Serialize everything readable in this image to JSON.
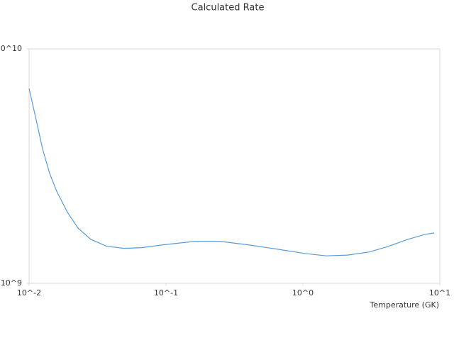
{
  "chart_data": {
    "type": "line",
    "title": "Calculated Rate",
    "x_label": "Temperature (GK)",
    "x": [
      0.01,
      0.01114,
      0.01254,
      0.01413,
      0.01591,
      0.01905,
      0.0228,
      0.02825,
      0.03673,
      0.04946,
      0.06668,
      0.0953,
      0.163,
      0.248,
      0.399,
      0.643,
      1.04,
      1.48,
      2.12,
      3.04,
      4.09,
      5.84,
      7.88,
      9.1
    ],
    "series": [
      {
        "name": "Rate",
        "color": "#5b9bd5",
        "values": [
          6780000000,
          5130000000,
          3750000000,
          2940000000,
          2470000000,
          2010000000,
          1720000000,
          1540000000,
          1440000000,
          1410000000,
          1420000000,
          1460000000,
          1510000000,
          1510000000,
          1460000000,
          1400000000,
          1340000000,
          1310000000,
          1320000000,
          1360000000,
          1430000000,
          1540000000,
          1620000000,
          1640000000
        ]
      }
    ],
    "xlim": [
      0.01,
      10
    ],
    "ylim": [
      1000000000,
      10000000000
    ],
    "xticks": [
      {
        "value": 0.01,
        "label": "10^-2"
      },
      {
        "value": 0.1,
        "label": "10^-1"
      },
      {
        "value": 1,
        "label": "10^0"
      },
      {
        "value": 10,
        "label": "10^1"
      }
    ],
    "yticks": [
      {
        "value": 1000000000,
        "label": "10^9"
      },
      {
        "value": 10000000000,
        "label": "10^10"
      }
    ],
    "xlog": true,
    "ylog": true
  }
}
